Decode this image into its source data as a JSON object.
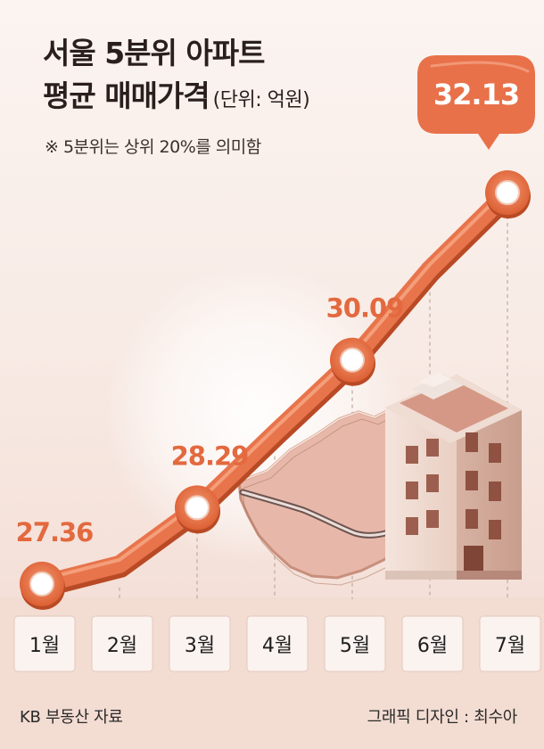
{
  "header": {
    "title_line1": "서울 5분위 아파트",
    "title_line2": "평균 매매가격",
    "unit": "(단위: 억원)",
    "note": "※ 5분위는 상위 20%를 의미함"
  },
  "footer": {
    "source": "KB 부동산 자료",
    "credit": "그래픽 디자인 : 최수아"
  },
  "colors": {
    "line": "#e8744c",
    "line_shadow": "#b84a25",
    "accent_text": "#e3693f",
    "bubble": "#e8714a",
    "background": "#f7ece7"
  },
  "chart_data": {
    "type": "line",
    "title": "서울 5분위 아파트 평균 매매가격",
    "ylabel": "억원",
    "categories": [
      "1월",
      "2월",
      "3월",
      "4월",
      "5월",
      "6월",
      "7월"
    ],
    "series": [
      {
        "name": "평균 매매가격",
        "values": [
          27.36,
          27.6,
          28.29,
          29.2,
          30.09,
          31.2,
          32.13
        ]
      }
    ],
    "labeled_points": [
      0,
      2,
      4
    ],
    "highlight_point": 6,
    "highlight_label": "32.13",
    "value_labels": [
      "27.36",
      "",
      "28.29",
      "",
      "30.09",
      "",
      "32.13"
    ],
    "ylim": [
      26.0,
      33.5
    ]
  }
}
